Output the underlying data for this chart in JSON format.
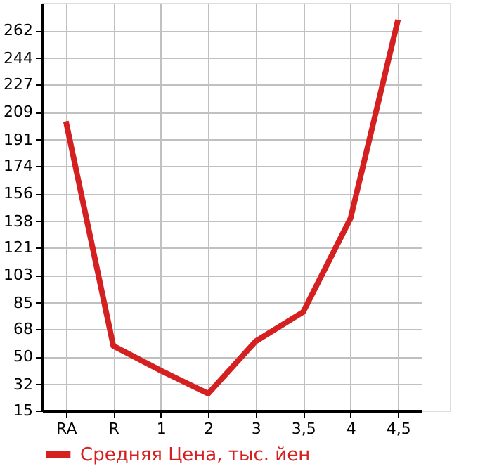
{
  "chart_data": {
    "type": "line",
    "categories": [
      "RA",
      "R",
      "1",
      "2",
      "3",
      "3,5",
      "4",
      "4,5"
    ],
    "series": [
      {
        "name": "Средняя Цена, тыс. йен",
        "color": "#d42020",
        "values": [
          203,
          57,
          41,
          26,
          60,
          79,
          140,
          269
        ]
      }
    ],
    "ylim": [
      15,
      280
    ],
    "yticks": [
      15,
      32,
      50,
      68,
      85,
      103,
      121,
      138,
      156,
      174,
      191,
      209,
      227,
      244,
      262
    ],
    "grid": true,
    "legend": "bottom left",
    "marker": "none",
    "line_style": "solid"
  }
}
